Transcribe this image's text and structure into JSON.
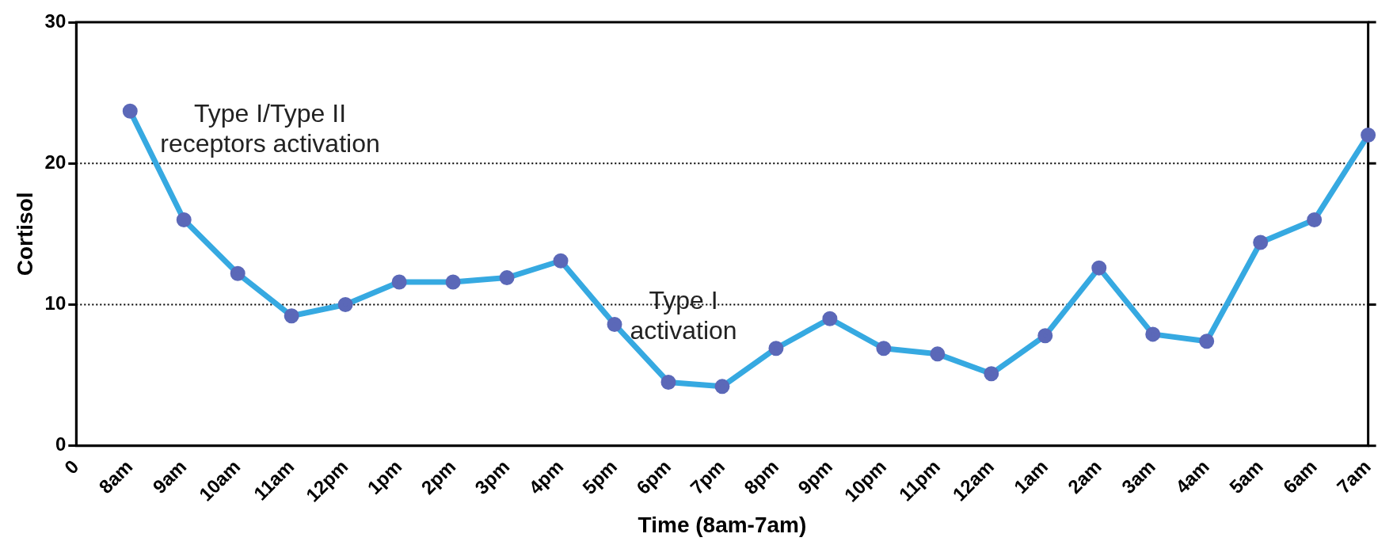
{
  "chart_data": {
    "type": "line",
    "xlabel": "Time (8am-7am)",
    "ylabel": "Cortisol",
    "categories": [
      "0",
      "8am",
      "9am",
      "10am",
      "11am",
      "12pm",
      "1pm",
      "2pm",
      "3pm",
      "4pm",
      "5pm",
      "6pm",
      "7pm",
      "8pm",
      "9pm",
      "10pm",
      "11pm",
      "12am",
      "1am",
      "2am",
      "3am",
      "4am",
      "5am",
      "6am",
      "7am"
    ],
    "series": [
      {
        "color": "#36a9e1",
        "values": [
          null,
          23.7,
          16.0,
          12.2,
          9.2,
          10.0,
          11.6,
          11.6,
          11.9,
          13.1,
          8.6,
          4.5,
          4.2,
          6.9,
          9.0,
          6.9,
          6.5,
          5.1,
          7.8,
          12.6,
          7.9,
          7.4,
          14.4,
          16.0,
          22.0
        ]
      }
    ],
    "marker": "circle",
    "ylim": [
      0,
      30
    ],
    "yticks": [
      0,
      10,
      20,
      30
    ],
    "grid": false,
    "legend": false,
    "ref_lines": [
      {
        "axis": "y",
        "value": 10,
        "color": "#000000",
        "line_style": "dotted"
      },
      {
        "axis": "y",
        "value": 20,
        "color": "#000000",
        "line_style": "dotted"
      }
    ],
    "annotations": [
      "Type I/Type II\nreceptors activation",
      "Type I\nactivation"
    ]
  }
}
